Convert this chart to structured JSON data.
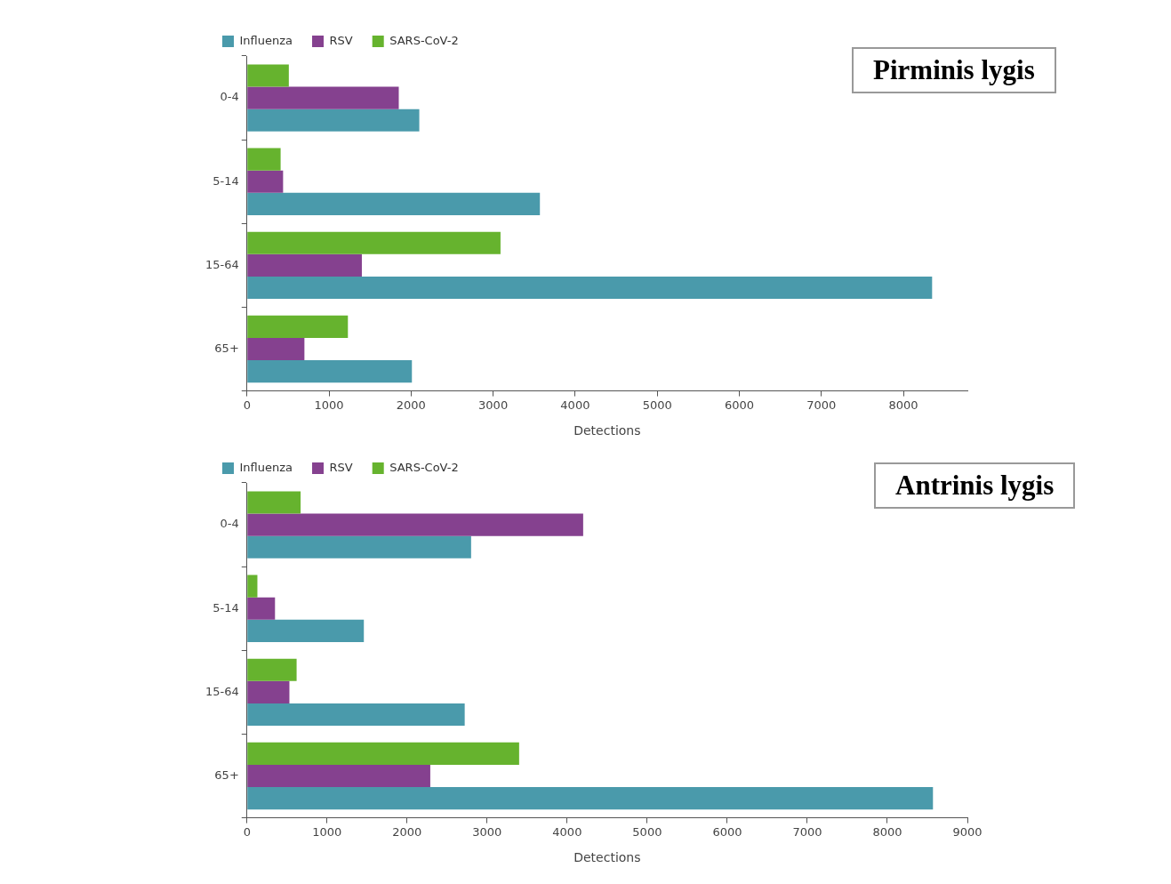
{
  "chart_data": [
    {
      "type": "bar",
      "title": "Pirminis lygis",
      "orientation": "horizontal",
      "categories": [
        "0-4",
        "5-14",
        "15-64",
        "65+"
      ],
      "xlabel": "Detections",
      "xlim": [
        0,
        8780
      ],
      "xticks": [
        0,
        1000,
        2000,
        3000,
        4000,
        5000,
        6000,
        7000,
        8000
      ],
      "legend": "top left",
      "grid": false,
      "series": [
        {
          "name": "Influenza",
          "color": "#4a9aab",
          "values": [
            2100,
            3570,
            8350,
            2010
          ]
        },
        {
          "name": "RSV",
          "color": "#85418f",
          "values": [
            1850,
            440,
            1400,
            700
          ]
        },
        {
          "name": "SARS-CoV-2",
          "color": "#66b32e",
          "values": [
            510,
            410,
            3090,
            1230
          ]
        }
      ]
    },
    {
      "type": "bar",
      "title": "Antrinis lygis",
      "orientation": "horizontal",
      "categories": [
        "0-4",
        "5-14",
        "15-64",
        "65+"
      ],
      "xlabel": "Detections",
      "xlim": [
        0,
        9000
      ],
      "xticks": [
        0,
        1000,
        2000,
        3000,
        4000,
        5000,
        6000,
        7000,
        8000,
        9000
      ],
      "legend": "top left",
      "grid": false,
      "series": [
        {
          "name": "Influenza",
          "color": "#4a9aab",
          "values": [
            2800,
            1460,
            2720,
            8570
          ]
        },
        {
          "name": "RSV",
          "color": "#85418f",
          "values": [
            4200,
            350,
            530,
            2290
          ]
        },
        {
          "name": "SARS-CoV-2",
          "color": "#66b32e",
          "values": [
            670,
            130,
            620,
            3400
          ]
        }
      ]
    }
  ]
}
